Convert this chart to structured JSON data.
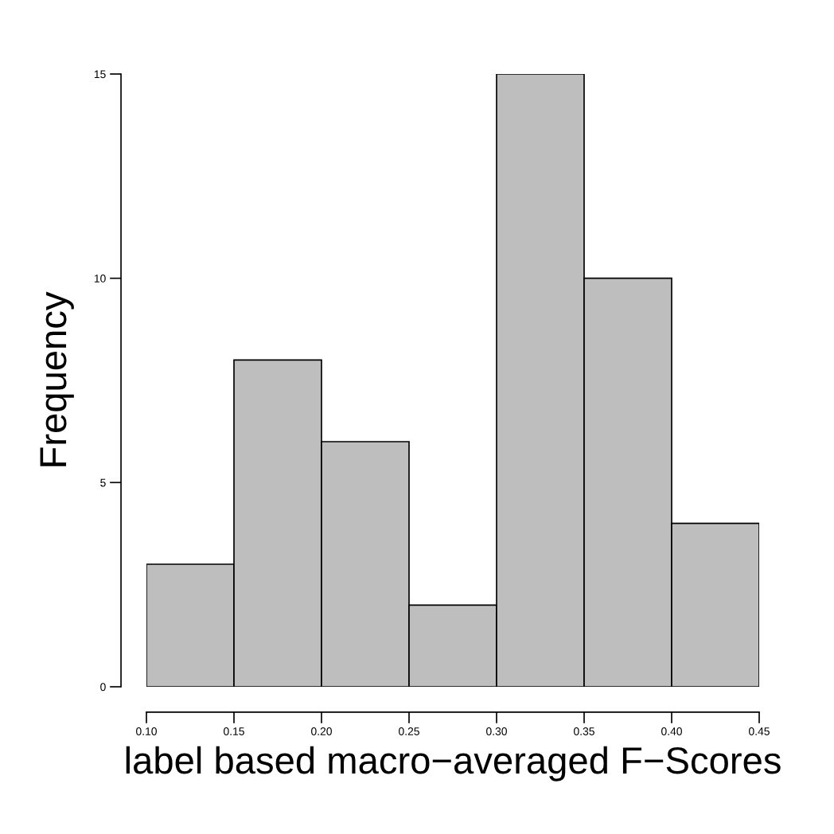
{
  "chart_data": {
    "type": "histogram",
    "xlabel": "label based macro−averaged F−Scores",
    "ylabel": "Frequency",
    "bins": [
      0.1,
      0.15,
      0.2,
      0.25,
      0.3,
      0.35,
      0.4,
      0.45
    ],
    "values": [
      3,
      8,
      6,
      2,
      15,
      10,
      4
    ],
    "color": "#bebebe",
    "xlim": [
      0.1,
      0.45
    ],
    "ylim": [
      0,
      15
    ],
    "xticks": [
      {
        "value": 0.1,
        "label": "0.10"
      },
      {
        "value": 0.15,
        "label": "0.15"
      },
      {
        "value": 0.2,
        "label": "0.20"
      },
      {
        "value": 0.25,
        "label": "0.25"
      },
      {
        "value": 0.3,
        "label": "0.30"
      },
      {
        "value": 0.35,
        "label": "0.35"
      },
      {
        "value": 0.4,
        "label": "0.40"
      },
      {
        "value": 0.45,
        "label": "0.45"
      }
    ],
    "yticks": [
      0,
      5,
      10,
      15
    ],
    "grid": false
  }
}
